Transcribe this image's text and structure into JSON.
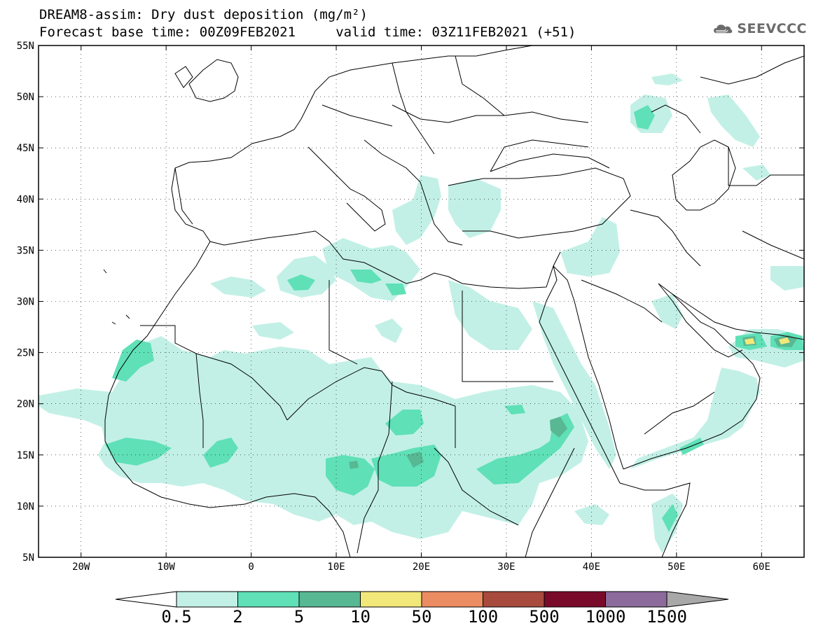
{
  "title": {
    "line1": "DREAM8-assim: Dry dust deposition (mg/m²)",
    "line2": "Forecast base time: 00Z09FEB2021     valid time: 03Z11FEB2021 (+51)"
  },
  "logo": {
    "text": "SEEVCCC",
    "icon": "cloud-icon",
    "color": "#6b6b6b"
  },
  "map": {
    "lon_range": [
      -25,
      65
    ],
    "lat_range": [
      5,
      55
    ],
    "lat_labels": [
      "55N",
      "50N",
      "45N",
      "40N",
      "35N",
      "30N",
      "25N",
      "20N",
      "15N",
      "10N",
      "5N"
    ],
    "lon_labels": [
      "20W",
      "10W",
      "0",
      "10E",
      "20E",
      "30E",
      "40E",
      "50E",
      "60E"
    ]
  },
  "colorbar": {
    "labels": [
      "0.5",
      "2",
      "5",
      "10",
      "50",
      "100",
      "500",
      "1000",
      "1500"
    ],
    "colors": [
      "#c2f0e6",
      "#5fe0b7",
      "#58b893",
      "#f2e87a",
      "#eb8c62",
      "#a84a3c",
      "#7a0a2a",
      "#8c6a9c",
      "#a8a8a8"
    ],
    "under_color": "#ffffff",
    "over_color": "#a8a8a8"
  }
}
